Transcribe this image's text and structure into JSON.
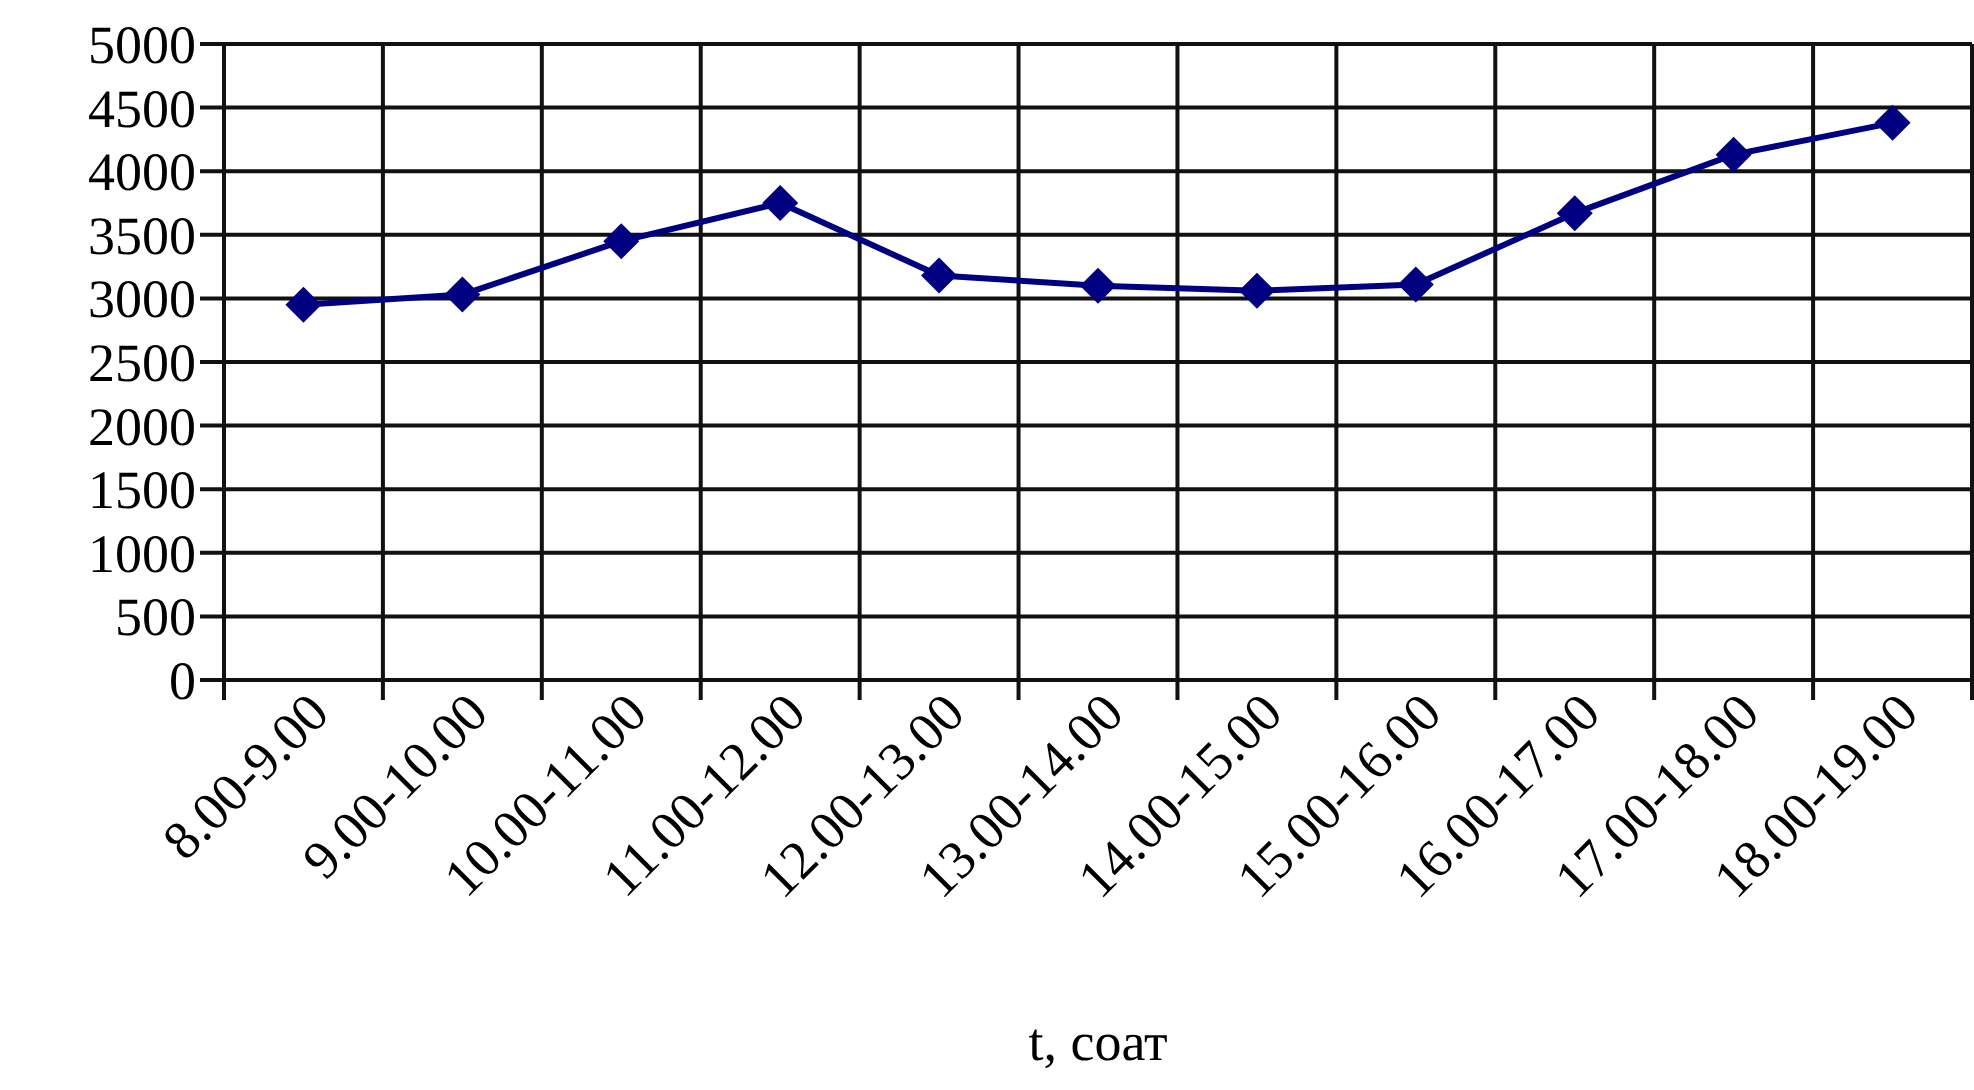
{
  "chart_data": {
    "type": "line",
    "xlabel": "t, соат",
    "categories": [
      "8.00-9.00",
      "9.00-10.00",
      "10.00-11.00",
      "11.00-12.00",
      "12.00-13.00",
      "13.00-14.00",
      "14.00-15.00",
      "15.00-16.00",
      "16.00-17.00",
      "17.00-18.00",
      "18.00-19.00"
    ],
    "series": [
      {
        "color": "#000080",
        "values": [
          2950,
          3030,
          3450,
          3750,
          3180,
          3100,
          3060,
          3110,
          3670,
          4130,
          4380
        ]
      }
    ],
    "ylim": [
      0,
      5000
    ],
    "yticks": [
      0,
      500,
      1000,
      1500,
      2000,
      2500,
      3000,
      3500,
      4000,
      4500,
      5000
    ],
    "grid": true,
    "marker": "diamond",
    "line_style": "solid"
  }
}
